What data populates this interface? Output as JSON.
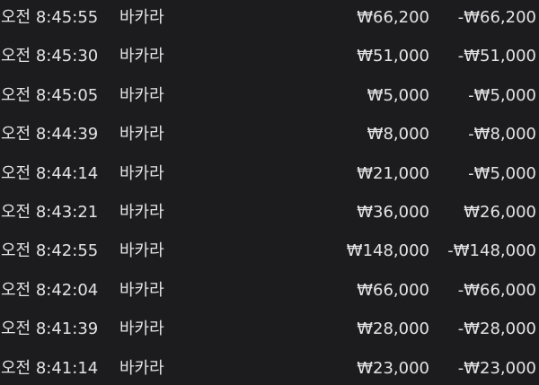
{
  "table": {
    "rows": [
      [
        "오전 8:45:55",
        "바카라",
        "₩66,200",
        "-₩66,200"
      ],
      [
        "오전 8:45:30",
        "바카라",
        "₩51,000",
        "-₩51,000"
      ],
      [
        "오전 8:45:05",
        "바카라",
        "₩5,000",
        "-₩5,000"
      ],
      [
        "오전 8:44:39",
        "바카라",
        "₩8,000",
        "-₩8,000"
      ],
      [
        "오전 8:44:14",
        "바카라",
        "₩21,000",
        "-₩5,000"
      ],
      [
        "오전 8:43:21",
        "바카라",
        "₩36,000",
        "₩26,000"
      ],
      [
        "오전 8:42:55",
        "바카라",
        "₩148,000",
        "-₩148,000"
      ],
      [
        "오전 8:42:04",
        "바카라",
        "₩66,000",
        "-₩66,000"
      ],
      [
        "오전 8:41:39",
        "바카라",
        "₩28,000",
        "-₩28,000"
      ],
      [
        "오전 8:41:14",
        "바카라",
        "₩23,000",
        "-₩23,000"
      ]
    ]
  }
}
